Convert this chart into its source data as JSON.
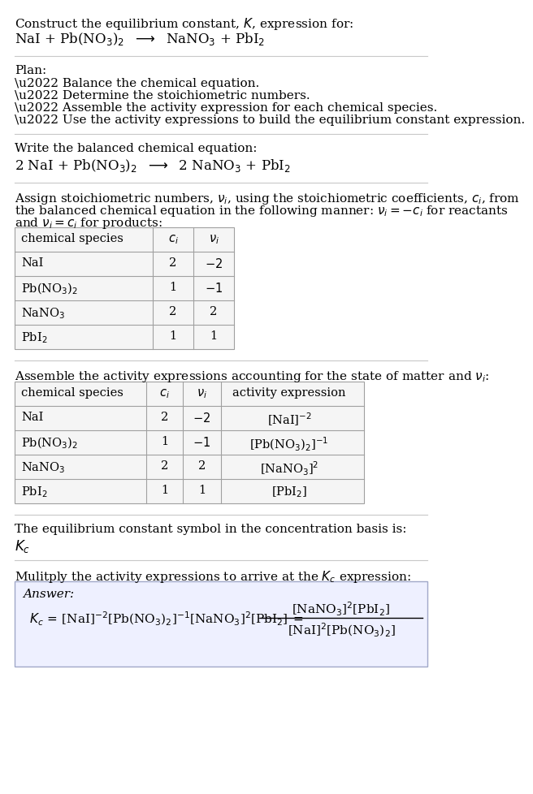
{
  "bg_color": "#ffffff",
  "text_color": "#000000",
  "section1_title": "Construct the equilibrium constant, $K$, expression for:",
  "section1_eq": "NaI + Pb(NO$_3$)$_2$  $\\longrightarrow$  NaNO$_3$ + PbI$_2$",
  "plan_title": "Plan:",
  "plan_bullets": [
    "\\u2022 Balance the chemical equation.",
    "\\u2022 Determine the stoichiometric numbers.",
    "\\u2022 Assemble the activity expression for each chemical species.",
    "\\u2022 Use the activity expressions to build the equilibrium constant expression."
  ],
  "section3_title": "Write the balanced chemical equation:",
  "section3_eq": "2 NaI + Pb(NO$_3$)$_2$  $\\longrightarrow$  2 NaNO$_3$ + PbI$_2$",
  "section4_title_lines": [
    "Assign stoichiometric numbers, $\\nu_i$, using the stoichiometric coefficients, $c_i$, from",
    "the balanced chemical equation in the following manner: $\\nu_i = -c_i$ for reactants",
    "and $\\nu_i = c_i$ for products:"
  ],
  "table1_headers": [
    "chemical species",
    "$c_i$",
    "$\\nu_i$"
  ],
  "table1_rows": [
    [
      "NaI",
      "2",
      "$-2$"
    ],
    [
      "Pb(NO$_3$)$_2$",
      "1",
      "$-1$"
    ],
    [
      "NaNO$_3$",
      "2",
      "2"
    ],
    [
      "PbI$_2$",
      "1",
      "1"
    ]
  ],
  "section5_title": "Assemble the activity expressions accounting for the state of matter and $\\nu_i$:",
  "table2_headers": [
    "chemical species",
    "$c_i$",
    "$\\nu_i$",
    "activity expression"
  ],
  "table2_rows": [
    [
      "NaI",
      "2",
      "$-2$",
      "[NaI]$^{-2}$"
    ],
    [
      "Pb(NO$_3$)$_2$",
      "1",
      "$-1$",
      "[Pb(NO$_3$)$_2$]$^{-1}$"
    ],
    [
      "NaNO$_3$",
      "2",
      "2",
      "[NaNO$_3$]$^2$"
    ],
    [
      "PbI$_2$",
      "1",
      "1",
      "[PbI$_2$]"
    ]
  ],
  "section6_title": "The equilibrium constant symbol in the concentration basis is:",
  "section6_symbol": "$K_c$",
  "section7_title": "Mulitply the activity expressions to arrive at the $K_c$ expression:",
  "answer_label": "Answer:",
  "hline_color": "#c8c8c8",
  "table_border_color": "#a0a0a0",
  "table_bg": "#f5f5f5",
  "answer_bg": "#eef0ff",
  "answer_border": "#a0a8c8"
}
